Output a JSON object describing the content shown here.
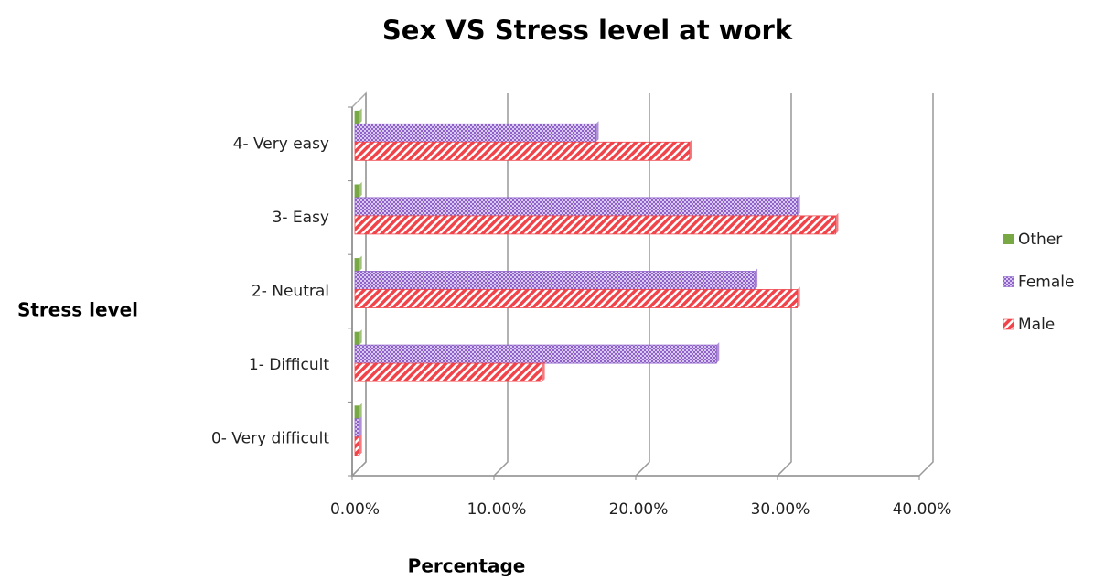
{
  "chart_data": {
    "type": "bar",
    "orientation": "horizontal",
    "title": "Sex VS Stress level at work",
    "x_label": "Percentage",
    "y_label": "Stress level",
    "categories": [
      "0- Very difficult",
      "1- Difficult",
      "2- Neutral",
      "3- Easy",
      "4- Very easy"
    ],
    "series": [
      {
        "name": "Other",
        "color": "#77a843",
        "pattern": "solid",
        "values": [
          0.3,
          0.3,
          0.3,
          0.3,
          0.3
        ]
      },
      {
        "name": "Female",
        "color": "#8e62c8",
        "pattern": "checker",
        "values": [
          0.3,
          25.5,
          28.2,
          31.2,
          17.0
        ]
      },
      {
        "name": "Male",
        "color": "#f0444a",
        "pattern": "stripes",
        "values": [
          0.3,
          13.2,
          31.2,
          33.9,
          23.6
        ]
      }
    ],
    "xlim": [
      0,
      40
    ],
    "xticks": [
      {
        "value": 0,
        "label": "0.00%"
      },
      {
        "value": 10,
        "label": "10.00%"
      },
      {
        "value": 20,
        "label": "20.00%"
      },
      {
        "value": 30,
        "label": "30.00%"
      },
      {
        "value": 40,
        "label": "40.00%"
      }
    ],
    "grid": true,
    "legend": "right"
  }
}
